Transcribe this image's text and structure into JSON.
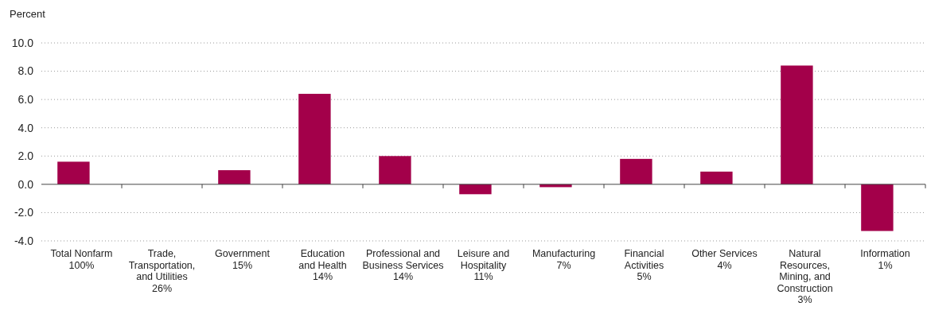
{
  "chart_data": {
    "type": "bar",
    "ylabel": "Percent",
    "categories": [
      "Total Nonfarm\n100%",
      "Trade,\nTransportation,\nand Utilities\n26%",
      "Government\n15%",
      "Education\nand Health\n14%",
      "Professional and\nBusiness Services\n14%",
      "Leisure and\nHospitality\n11%",
      "Manufacturing\n7%",
      "Financial\nActivities\n5%",
      "Other Services\n4%",
      "Natural\nResources,\nMining, and\nConstruction\n3%",
      "Information\n1%"
    ],
    "values": [
      1.6,
      0.0,
      1.0,
      6.4,
      2.0,
      -0.7,
      -0.2,
      1.8,
      0.9,
      8.4,
      -3.3
    ],
    "color": "#a3004a",
    "ylim": [
      -4,
      10
    ],
    "yticks": [
      {
        "value": -4,
        "label": "-4.0"
      },
      {
        "value": -2,
        "label": "-2.0"
      },
      {
        "value": 0,
        "label": "0.0"
      },
      {
        "value": 2,
        "label": "2.0"
      },
      {
        "value": 4,
        "label": "4.0"
      },
      {
        "value": 6,
        "label": "6.0"
      },
      {
        "value": 8,
        "label": "8.0"
      },
      {
        "value": 10,
        "label": "10.0"
      }
    ],
    "grid": "y"
  }
}
